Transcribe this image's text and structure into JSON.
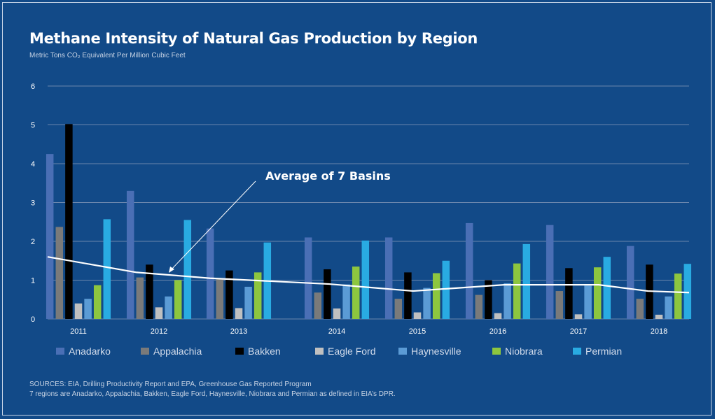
{
  "chart_data": {
    "type": "bar",
    "title": "Methane Intensity of Natural Gas Production by Region",
    "subtitle": "Metric Tons CO₂ Equivalent Per Million Cubic Feet",
    "xlabel": "",
    "ylabel": "",
    "ylim": [
      0,
      6
    ],
    "yticks": [
      "0",
      "1",
      "2",
      "3",
      "4",
      "5",
      "6"
    ],
    "grid": true,
    "legend_position": "bottom",
    "categories": [
      "2011",
      "2012",
      "2013",
      "2014",
      "2015",
      "2016",
      "2017",
      "2018"
    ],
    "series": [
      {
        "name": "Anadarko",
        "color": "#4a6fb5",
        "values": [
          4.25,
          3.3,
          2.33,
          2.1,
          2.1,
          2.47,
          2.42,
          1.88
        ]
      },
      {
        "name": "Appalachia",
        "color": "#7a7a7a",
        "values": [
          2.37,
          1.07,
          1.02,
          0.68,
          0.52,
          0.62,
          0.72,
          0.52
        ]
      },
      {
        "name": "Bakken",
        "color": "#000000",
        "values": [
          5.02,
          1.4,
          1.25,
          1.28,
          1.2,
          1.0,
          1.31,
          1.4
        ]
      },
      {
        "name": "Eagle Ford",
        "color": "#c0c0c0",
        "values": [
          0.4,
          0.3,
          0.28,
          0.27,
          0.17,
          0.15,
          0.12,
          0.11
        ]
      },
      {
        "name": "Haynesville",
        "color": "#5b9bd5",
        "values": [
          0.52,
          0.58,
          0.83,
          0.89,
          0.8,
          0.92,
          0.86,
          0.58
        ]
      },
      {
        "name": "Niobrara",
        "color": "#8dc63f",
        "values": [
          0.87,
          1.0,
          1.2,
          1.35,
          1.18,
          1.43,
          1.33,
          1.17
        ]
      },
      {
        "name": "Permian",
        "color": "#29abe2",
        "values": [
          2.57,
          2.55,
          1.97,
          2.02,
          1.5,
          1.93,
          1.6,
          1.42
        ]
      }
    ],
    "line_series": {
      "name": "Average of 7 Basins",
      "color": "#ffffff",
      "x": [
        0.0,
        1.0,
        2.0,
        3.0,
        4.0,
        5.0,
        6.0,
        7.0,
        7.25
      ],
      "values": [
        1.6,
        1.2,
        1.05,
        0.9,
        0.72,
        0.88,
        0.88,
        0.72,
        0.68
      ]
    },
    "annotation": {
      "text": "Average of 7 Basins",
      "points_to": "2012"
    }
  },
  "sources": [
    "SOURCES: EIA, Drilling Productivity Report and EPA, Greenhouse Gas Reported Program",
    "7 regions are Anadarko, Appalachia, Bakken, Eagle Ford, Haynesville, Niobrara and Permian as defined in EIA’s DPR."
  ]
}
